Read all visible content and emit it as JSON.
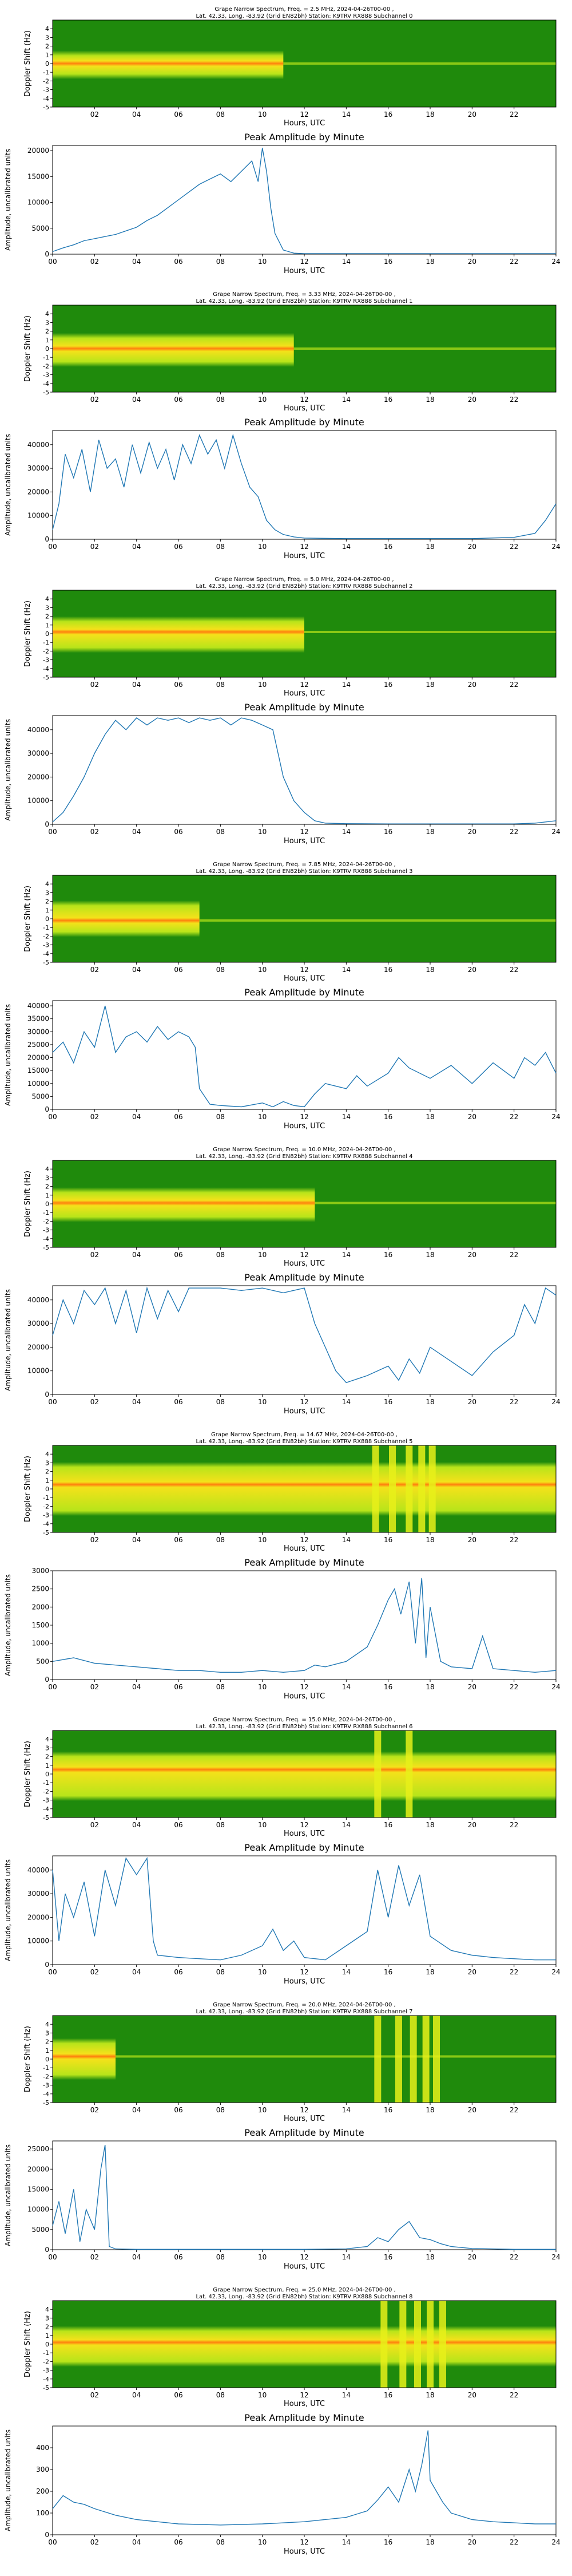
{
  "chart_data": {
    "type": "figure",
    "x_axis": {
      "label": "Hours, UTC",
      "range": [
        0,
        24
      ],
      "spec_ticks": [
        "02",
        "04",
        "06",
        "08",
        "10",
        "12",
        "14",
        "16",
        "18",
        "20",
        "22"
      ],
      "amp_ticks": [
        "00",
        "02",
        "04",
        "06",
        "08",
        "10",
        "12",
        "14",
        "16",
        "18",
        "20",
        "22",
        "24"
      ]
    },
    "y_axis_spec": {
      "label": "Doppler Shift (Hz)",
      "range": [
        -5,
        5
      ],
      "ticks": [
        "4",
        "3",
        "2",
        "1",
        "0",
        "-1",
        "-2",
        "-3",
        "-4",
        "-5"
      ]
    },
    "y_axis_amp": {
      "label": "Amplitude, uncalibrated units"
    },
    "amp_title": "Peak Amplitude by Minute",
    "colors": {
      "spec_bg": "#1f8a0c",
      "spec_band": "#b8e41a",
      "spec_peak": "#ff7f0e",
      "spec_hot": "#e8f01a",
      "line": "#1f77b4"
    },
    "channels": [
      {
        "title": [
          "Grape Narrow Spectrum, Freq. = 2.5 MHz, 2024-04-26T00-00 ,",
          "Lat.  42.33, Long. -83.92 (Grid EN82bh) Station: K9TRV RX888 Subchannel 0"
        ],
        "ylim": [
          0,
          21000
        ],
        "yticks": [
          "0",
          "5000",
          "10000",
          "15000",
          "20000"
        ],
        "ytick_values": [
          0,
          5000,
          10000,
          15000,
          20000
        ],
        "amp": {
          "t": [
            0,
            0.5,
            1,
            1.5,
            2,
            2.5,
            3,
            3.5,
            4,
            4.5,
            5,
            5.5,
            6,
            6.5,
            7,
            7.5,
            8,
            8.5,
            9,
            9.5,
            9.8,
            10,
            10.2,
            10.4,
            10.6,
            11,
            11.5,
            12,
            14,
            16,
            18,
            20,
            22,
            24
          ],
          "v": [
            500,
            1200,
            1800,
            2600,
            3000,
            3400,
            3800,
            4500,
            5200,
            6500,
            7500,
            9000,
            10500,
            12000,
            13500,
            14500,
            15500,
            14000,
            16000,
            18000,
            14000,
            20500,
            16000,
            9000,
            4000,
            800,
            200,
            100,
            100,
            100,
            100,
            100,
            100,
            100
          ]
        },
        "spec": {
          "active": [
            0,
            11
          ],
          "band": [
            -1.2,
            0.9
          ],
          "peak": 0.0,
          "hot": []
        }
      },
      {
        "title": [
          "Grape Narrow Spectrum, Freq. = 3.33 MHz, 2024-04-26T00-00 ,",
          "Lat.  42.33, Long. -83.92 (Grid EN82bh) Station: K9TRV RX888 Subchannel 1"
        ],
        "ylim": [
          0,
          46000
        ],
        "yticks": [
          "0",
          "10000",
          "20000",
          "30000",
          "40000"
        ],
        "ytick_values": [
          0,
          10000,
          20000,
          30000,
          40000
        ],
        "amp": {
          "t": [
            0,
            0.3,
            0.6,
            1,
            1.4,
            1.8,
            2.2,
            2.6,
            3,
            3.4,
            3.8,
            4.2,
            4.6,
            5,
            5.4,
            5.8,
            6.2,
            6.6,
            7,
            7.4,
            7.8,
            8.2,
            8.6,
            9,
            9.4,
            9.8,
            10.2,
            10.6,
            11,
            11.5,
            12,
            14,
            16,
            18,
            20,
            22,
            23,
            23.5,
            24
          ],
          "v": [
            4000,
            15000,
            36000,
            26000,
            38000,
            20000,
            42000,
            30000,
            34000,
            22000,
            40000,
            28000,
            41000,
            30000,
            38000,
            25000,
            40000,
            32000,
            44000,
            36000,
            42000,
            30000,
            44000,
            32000,
            22000,
            18000,
            8000,
            4000,
            2000,
            1000,
            500,
            300,
            300,
            300,
            300,
            800,
            2500,
            8000,
            15000
          ]
        },
        "spec": {
          "active": [
            0,
            11.5
          ],
          "band": [
            -1.5,
            1.2
          ],
          "peak": 0.0,
          "hot": []
        }
      },
      {
        "title": [
          "Grape Narrow Spectrum, Freq. = 5.0 MHz, 2024-04-26T00-00 ,",
          "Lat.  42.33, Long. -83.92 (Grid EN82bh) Station: K9TRV RX888 Subchannel 2"
        ],
        "ylim": [
          0,
          46000
        ],
        "yticks": [
          "0",
          "10000",
          "20000",
          "30000",
          "40000"
        ],
        "ytick_values": [
          0,
          10000,
          20000,
          30000,
          40000
        ],
        "amp": {
          "t": [
            0,
            0.5,
            1,
            1.5,
            2,
            2.5,
            3,
            3.5,
            4,
            4.5,
            5,
            5.5,
            6,
            6.5,
            7,
            7.5,
            8,
            8.5,
            9,
            9.5,
            10,
            10.5,
            11,
            11.5,
            12,
            12.5,
            13,
            14,
            16,
            18,
            20,
            22,
            23,
            24
          ],
          "v": [
            1000,
            5000,
            12000,
            20000,
            30000,
            38000,
            44000,
            40000,
            45000,
            42000,
            45000,
            44000,
            45000,
            43000,
            45000,
            44000,
            45000,
            42000,
            45000,
            44000,
            42000,
            40000,
            20000,
            10000,
            5000,
            1500,
            500,
            300,
            200,
            200,
            200,
            200,
            500,
            1500
          ]
        },
        "spec": {
          "active": [
            0,
            12
          ],
          "band": [
            -1.6,
            1.4
          ],
          "peak": 0.2,
          "hot": []
        }
      },
      {
        "title": [
          "Grape Narrow Spectrum, Freq. = 7.85 MHz, 2024-04-26T00-00 ,",
          "Lat.  42.33, Long. -83.92 (Grid EN82bh) Station: K9TRV RX888 Subchannel 3"
        ],
        "ylim": [
          0,
          42000
        ],
        "yticks": [
          "0",
          "5000",
          "10000",
          "15000",
          "20000",
          "25000",
          "30000",
          "35000",
          "40000"
        ],
        "ytick_values": [
          0,
          5000,
          10000,
          15000,
          20000,
          25000,
          30000,
          35000,
          40000
        ],
        "amp": {
          "t": [
            0,
            0.5,
            1,
            1.5,
            2,
            2.5,
            3,
            3.5,
            4,
            4.5,
            5,
            5.5,
            6,
            6.5,
            6.8,
            7,
            7.5,
            8,
            9,
            10,
            10.5,
            11,
            11.5,
            12,
            12.5,
            13,
            14,
            14.5,
            15,
            16,
            16.5,
            17,
            18,
            19,
            20,
            20.5,
            21,
            22,
            22.5,
            23,
            23.5,
            24
          ],
          "v": [
            22000,
            26000,
            18000,
            30000,
            24000,
            40000,
            22000,
            28000,
            30000,
            26000,
            32000,
            27000,
            30000,
            28000,
            24000,
            8000,
            2000,
            1500,
            1000,
            2500,
            1000,
            3000,
            1500,
            1000,
            6000,
            10000,
            8000,
            13000,
            9000,
            14000,
            20000,
            16000,
            12000,
            17000,
            10000,
            14000,
            18000,
            12000,
            20000,
            17000,
            22000,
            14000
          ]
        },
        "spec": {
          "active": [
            0,
            7
          ],
          "band": [
            -1.5,
            1.5
          ],
          "peak": -0.2,
          "hot": []
        }
      },
      {
        "title": [
          "Grape Narrow Spectrum, Freq. = 10.0 MHz, 2024-04-26T00-00 ,",
          "Lat.  42.33, Long. -83.92 (Grid EN82bh) Station: K9TRV RX888 Subchannel 4"
        ],
        "ylim": [
          0,
          46000
        ],
        "yticks": [
          "0",
          "10000",
          "20000",
          "30000",
          "40000"
        ],
        "ytick_values": [
          0,
          10000,
          20000,
          30000,
          40000
        ],
        "amp": {
          "t": [
            0,
            0.5,
            1,
            1.5,
            2,
            2.5,
            3,
            3.5,
            4,
            4.5,
            5,
            5.5,
            6,
            6.5,
            7,
            8,
            9,
            10,
            11,
            12,
            12.5,
            13,
            13.5,
            14,
            15,
            16,
            16.5,
            17,
            17.5,
            18,
            19,
            20,
            21,
            22,
            22.5,
            23,
            23.5,
            24
          ],
          "v": [
            25000,
            40000,
            30000,
            44000,
            38000,
            45000,
            30000,
            44000,
            26000,
            45000,
            32000,
            44000,
            35000,
            45000,
            45000,
            45000,
            44000,
            45000,
            43000,
            45000,
            30000,
            20000,
            10000,
            5000,
            8000,
            12000,
            6000,
            15000,
            9000,
            20000,
            14000,
            8000,
            18000,
            25000,
            38000,
            30000,
            45000,
            42000
          ]
        },
        "spec": {
          "active": [
            0,
            12.5
          ],
          "band": [
            -1.5,
            1.3
          ],
          "peak": 0.1,
          "hot": []
        }
      },
      {
        "title": [
          "Grape Narrow Spectrum, Freq. = 14.67 MHz, 2024-04-26T00-00 ,",
          "Lat.  42.33, Long. -83.92 (Grid EN82bh) Station: K9TRV RX888 Subchannel 5"
        ],
        "ylim": [
          0,
          3000
        ],
        "yticks": [
          "0",
          "500",
          "1000",
          "1500",
          "2000",
          "2500",
          "3000"
        ],
        "ytick_values": [
          0,
          500,
          1000,
          1500,
          2000,
          2500,
          3000
        ],
        "amp": {
          "t": [
            0,
            1,
            2,
            3,
            4,
            5,
            6,
            7,
            8,
            9,
            10,
            11,
            12,
            12.5,
            13,
            14,
            15,
            15.5,
            16,
            16.3,
            16.6,
            17,
            17.3,
            17.6,
            17.8,
            18,
            18.5,
            19,
            20,
            20.5,
            21,
            22,
            23,
            24
          ],
          "v": [
            500,
            600,
            450,
            400,
            350,
            300,
            250,
            250,
            200,
            200,
            250,
            200,
            250,
            400,
            350,
            500,
            900,
            1500,
            2200,
            2500,
            1800,
            2700,
            1000,
            2800,
            600,
            2000,
            500,
            350,
            300,
            1200,
            300,
            250,
            200,
            250
          ]
        },
        "spec": {
          "active": [
            0,
            24
          ],
          "band": [
            -2.5,
            2.5
          ],
          "peak": 0.5,
          "hot": [
            15.4,
            16.2,
            17.0,
            17.6,
            18.1
          ]
        }
      },
      {
        "title": [
          "Grape Narrow Spectrum, Freq. = 15.0 MHz, 2024-04-26T00-00 ,",
          "Lat.  42.33, Long. -83.92 (Grid EN82bh) Station: K9TRV RX888 Subchannel 6"
        ],
        "ylim": [
          0,
          46000
        ],
        "yticks": [
          "0",
          "10000",
          "20000",
          "30000",
          "40000"
        ],
        "ytick_values": [
          0,
          10000,
          20000,
          30000,
          40000
        ],
        "amp": {
          "t": [
            0,
            0.3,
            0.6,
            1,
            1.5,
            2,
            2.5,
            3,
            3.5,
            4,
            4.5,
            4.8,
            5,
            6,
            7,
            8,
            9,
            10,
            10.5,
            11,
            11.5,
            12,
            13,
            14,
            15,
            15.5,
            16,
            16.5,
            17,
            17.5,
            18,
            19,
            20,
            21,
            22,
            23,
            24
          ],
          "v": [
            40000,
            10000,
            30000,
            20000,
            35000,
            12000,
            40000,
            25000,
            45000,
            38000,
            45000,
            10000,
            4000,
            3000,
            2500,
            2000,
            4000,
            8000,
            15000,
            6000,
            10000,
            3000,
            2000,
            8000,
            14000,
            40000,
            20000,
            42000,
            25000,
            38000,
            12000,
            6000,
            4000,
            3000,
            2500,
            2000,
            2000
          ]
        },
        "spec": {
          "active": [
            0,
            24
          ],
          "band": [
            -2.5,
            2.0
          ],
          "peak": 0.5,
          "hot": [
            15.5,
            17.0
          ]
        }
      },
      {
        "title": [
          "Grape Narrow Spectrum, Freq. = 20.0 MHz, 2024-04-26T00-00 ,",
          "Lat.  42.33, Long. -83.92 (Grid EN82bh) Station: K9TRV RX888 Subchannel 7"
        ],
        "ylim": [
          0,
          27000
        ],
        "yticks": [
          "0",
          "5000",
          "10000",
          "15000",
          "20000",
          "25000"
        ],
        "ytick_values": [
          0,
          5000,
          10000,
          15000,
          20000,
          25000
        ],
        "amp": {
          "t": [
            0,
            0.3,
            0.6,
            1,
            1.3,
            1.6,
            2,
            2.3,
            2.5,
            2.7,
            3,
            4,
            6,
            8,
            10,
            12,
            14,
            15,
            15.5,
            16,
            16.5,
            17,
            17.5,
            18,
            18.5,
            19,
            20,
            22,
            24
          ],
          "v": [
            6000,
            12000,
            4000,
            15000,
            2000,
            10000,
            5000,
            20000,
            26000,
            800,
            200,
            100,
            100,
            100,
            100,
            100,
            200,
            800,
            3000,
            2000,
            5000,
            7000,
            3000,
            2500,
            1500,
            800,
            300,
            100,
            100
          ]
        },
        "spec": {
          "active": [
            0,
            3
          ],
          "band": [
            -1.8,
            1.8
          ],
          "peak": 0.3,
          "hot": [
            15.5,
            16.5,
            17.2,
            17.8,
            18.3
          ]
        }
      },
      {
        "title": [
          "Grape Narrow Spectrum, Freq. = 25.0 MHz, 2024-04-26T00-00 ,",
          "Lat.  42.33, Long. -83.92 (Grid EN82bh) Station: K9TRV RX888 Subchannel 8"
        ],
        "ylim": [
          0,
          500
        ],
        "yticks": [
          "0",
          "100",
          "200",
          "300",
          "400"
        ],
        "ytick_values": [
          0,
          100,
          200,
          300,
          400
        ],
        "amp": {
          "t": [
            0,
            0.5,
            1,
            1.5,
            2,
            3,
            4,
            5,
            6,
            8,
            10,
            12,
            14,
            15,
            15.5,
            16,
            16.5,
            17,
            17.3,
            17.6,
            17.9,
            18,
            18.3,
            18.6,
            19,
            20,
            21,
            22,
            23,
            24
          ],
          "v": [
            120,
            180,
            150,
            140,
            120,
            90,
            70,
            60,
            50,
            45,
            50,
            60,
            80,
            110,
            160,
            220,
            150,
            300,
            200,
            320,
            480,
            250,
            200,
            150,
            100,
            70,
            60,
            55,
            50,
            50
          ]
        },
        "spec": {
          "active": [
            0,
            24
          ],
          "band": [
            -2.0,
            1.5
          ],
          "peak": 0.2,
          "hot": [
            15.8,
            16.7,
            17.4,
            18.0,
            18.6
          ]
        }
      }
    ]
  }
}
